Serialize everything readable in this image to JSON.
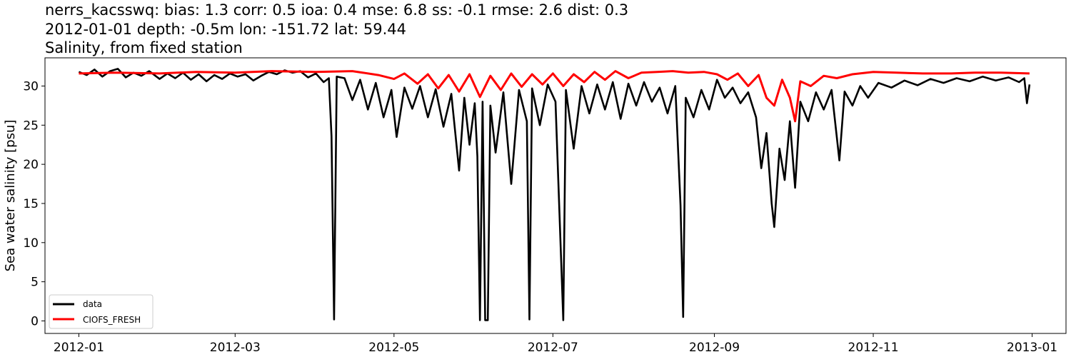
{
  "chart_data": {
    "type": "line",
    "title_lines": [
      "nerrs_kacsswq: bias: 1.3  corr: 0.5  ioa: 0.4  mse: 6.8  ss: -0.1  rmse: 2.6  dist: 0.3",
      "2012-01-01 depth: -0.5m lon: -151.72 lat: 59.44",
      "Salinity, from fixed station"
    ],
    "xlabel": "",
    "ylabel": "Sea water salinity [psu]",
    "xlim": [
      "2011-12-19",
      "2013-01-14"
    ],
    "ylim": [
      -1.6,
      33.6
    ],
    "x_ticks": [
      {
        "date": "2012-01-01",
        "label": "2012-01"
      },
      {
        "date": "2012-03-01",
        "label": "2012-03"
      },
      {
        "date": "2012-05-01",
        "label": "2012-05"
      },
      {
        "date": "2012-07-01",
        "label": "2012-07"
      },
      {
        "date": "2012-09-01",
        "label": "2012-09"
      },
      {
        "date": "2012-11-01",
        "label": "2012-11"
      },
      {
        "date": "2013-01-01",
        "label": "2013-01"
      }
    ],
    "y_ticks": [
      0,
      5,
      10,
      15,
      20,
      25,
      30
    ],
    "legend_position": "lower-left",
    "series": [
      {
        "name": "data",
        "color": "#000000",
        "points": [
          [
            "2012-01-01",
            31.8
          ],
          [
            "2012-01-04",
            31.4
          ],
          [
            "2012-01-07",
            32.1
          ],
          [
            "2012-01-10",
            31.2
          ],
          [
            "2012-01-13",
            31.9
          ],
          [
            "2012-01-16",
            32.2
          ],
          [
            "2012-01-19",
            31.1
          ],
          [
            "2012-01-22",
            31.7
          ],
          [
            "2012-01-25",
            31.3
          ],
          [
            "2012-01-28",
            31.9
          ],
          [
            "2012-02-01",
            30.9
          ],
          [
            "2012-02-04",
            31.6
          ],
          [
            "2012-02-07",
            31.0
          ],
          [
            "2012-02-10",
            31.7
          ],
          [
            "2012-02-13",
            30.8
          ],
          [
            "2012-02-16",
            31.5
          ],
          [
            "2012-02-19",
            30.6
          ],
          [
            "2012-02-22",
            31.4
          ],
          [
            "2012-02-25",
            30.9
          ],
          [
            "2012-02-28",
            31.6
          ],
          [
            "2012-03-02",
            31.2
          ],
          [
            "2012-03-05",
            31.5
          ],
          [
            "2012-03-08",
            30.7
          ],
          [
            "2012-03-11",
            31.3
          ],
          [
            "2012-03-14",
            31.8
          ],
          [
            "2012-03-17",
            31.5
          ],
          [
            "2012-03-20",
            32.0
          ],
          [
            "2012-03-23",
            31.7
          ],
          [
            "2012-03-26",
            31.9
          ],
          [
            "2012-03-29",
            31.1
          ],
          [
            "2012-04-01",
            31.6
          ],
          [
            "2012-04-04",
            30.5
          ],
          [
            "2012-04-06",
            31.0
          ],
          [
            "2012-04-07",
            23.6
          ],
          [
            "2012-04-08",
            0.2
          ],
          [
            "2012-04-09",
            31.2
          ],
          [
            "2012-04-12",
            31.0
          ],
          [
            "2012-04-15",
            28.2
          ],
          [
            "2012-04-18",
            30.8
          ],
          [
            "2012-04-21",
            27.0
          ],
          [
            "2012-04-24",
            30.4
          ],
          [
            "2012-04-27",
            26.0
          ],
          [
            "2012-04-30",
            29.5
          ],
          [
            "2012-05-02",
            23.5
          ],
          [
            "2012-05-05",
            29.8
          ],
          [
            "2012-05-08",
            27.1
          ],
          [
            "2012-05-11",
            30.0
          ],
          [
            "2012-05-14",
            26.0
          ],
          [
            "2012-05-17",
            29.6
          ],
          [
            "2012-05-20",
            24.8
          ],
          [
            "2012-05-23",
            29.0
          ],
          [
            "2012-05-26",
            19.2
          ],
          [
            "2012-05-28",
            28.5
          ],
          [
            "2012-05-30",
            22.5
          ],
          [
            "2012-06-01",
            27.8
          ],
          [
            "2012-06-02",
            21.0
          ],
          [
            "2012-06-03",
            0.1
          ],
          [
            "2012-06-04",
            28.0
          ],
          [
            "2012-06-05",
            0.1
          ],
          [
            "2012-06-06",
            0.1
          ],
          [
            "2012-06-07",
            27.5
          ],
          [
            "2012-06-09",
            21.5
          ],
          [
            "2012-06-12",
            29.2
          ],
          [
            "2012-06-15",
            17.5
          ],
          [
            "2012-06-18",
            29.5
          ],
          [
            "2012-06-21",
            25.5
          ],
          [
            "2012-06-22",
            0.2
          ],
          [
            "2012-06-23",
            29.7
          ],
          [
            "2012-06-26",
            25.0
          ],
          [
            "2012-06-29",
            30.2
          ],
          [
            "2012-07-02",
            28.0
          ],
          [
            "2012-07-05",
            0.1
          ],
          [
            "2012-07-06",
            29.5
          ],
          [
            "2012-07-09",
            22.0
          ],
          [
            "2012-07-12",
            30.0
          ],
          [
            "2012-07-15",
            26.5
          ],
          [
            "2012-07-18",
            30.2
          ],
          [
            "2012-07-21",
            27.0
          ],
          [
            "2012-07-24",
            30.5
          ],
          [
            "2012-07-27",
            25.8
          ],
          [
            "2012-07-30",
            30.3
          ],
          [
            "2012-08-02",
            27.5
          ],
          [
            "2012-08-05",
            30.5
          ],
          [
            "2012-08-08",
            28.0
          ],
          [
            "2012-08-11",
            29.8
          ],
          [
            "2012-08-14",
            26.5
          ],
          [
            "2012-08-17",
            30.0
          ],
          [
            "2012-08-19",
            14.8
          ],
          [
            "2012-08-20",
            0.5
          ],
          [
            "2012-08-21",
            28.5
          ],
          [
            "2012-08-24",
            26.0
          ],
          [
            "2012-08-27",
            29.5
          ],
          [
            "2012-08-30",
            27.0
          ],
          [
            "2012-09-02",
            30.8
          ],
          [
            "2012-09-05",
            28.5
          ],
          [
            "2012-09-08",
            29.8
          ],
          [
            "2012-09-11",
            27.8
          ],
          [
            "2012-09-14",
            29.2
          ],
          [
            "2012-09-17",
            26.0
          ],
          [
            "2012-09-19",
            19.5
          ],
          [
            "2012-09-21",
            24.0
          ],
          [
            "2012-09-23",
            15.0
          ],
          [
            "2012-09-24",
            12.0
          ],
          [
            "2012-09-26",
            22.0
          ],
          [
            "2012-09-28",
            18.0
          ],
          [
            "2012-09-30",
            25.5
          ],
          [
            "2012-10-02",
            17.0
          ],
          [
            "2012-10-04",
            28.0
          ],
          [
            "2012-10-07",
            25.5
          ],
          [
            "2012-10-10",
            29.2
          ],
          [
            "2012-10-13",
            27.0
          ],
          [
            "2012-10-16",
            29.5
          ],
          [
            "2012-10-19",
            20.5
          ],
          [
            "2012-10-21",
            29.3
          ],
          [
            "2012-10-24",
            27.5
          ],
          [
            "2012-10-27",
            30.0
          ],
          [
            "2012-10-30",
            28.5
          ],
          [
            "2012-11-03",
            30.4
          ],
          [
            "2012-11-08",
            29.8
          ],
          [
            "2012-11-13",
            30.7
          ],
          [
            "2012-11-18",
            30.1
          ],
          [
            "2012-11-23",
            30.9
          ],
          [
            "2012-11-28",
            30.4
          ],
          [
            "2012-12-03",
            31.0
          ],
          [
            "2012-12-08",
            30.6
          ],
          [
            "2012-12-13",
            31.2
          ],
          [
            "2012-12-18",
            30.7
          ],
          [
            "2012-12-23",
            31.1
          ],
          [
            "2012-12-27",
            30.5
          ],
          [
            "2012-12-29",
            31.0
          ],
          [
            "2012-12-30",
            27.8
          ],
          [
            "2012-12-31",
            30.2
          ]
        ]
      },
      {
        "name": "CIOFS_FRESH",
        "color": "#ff0000",
        "points": [
          [
            "2012-01-01",
            31.6
          ],
          [
            "2012-01-15",
            31.7
          ],
          [
            "2012-02-01",
            31.6
          ],
          [
            "2012-02-15",
            31.8
          ],
          [
            "2012-03-01",
            31.7
          ],
          [
            "2012-03-15",
            31.9
          ],
          [
            "2012-04-01",
            31.8
          ],
          [
            "2012-04-15",
            31.9
          ],
          [
            "2012-04-25",
            31.4
          ],
          [
            "2012-05-01",
            30.9
          ],
          [
            "2012-05-05",
            31.6
          ],
          [
            "2012-05-10",
            30.3
          ],
          [
            "2012-05-14",
            31.5
          ],
          [
            "2012-05-18",
            29.7
          ],
          [
            "2012-05-22",
            31.4
          ],
          [
            "2012-05-26",
            29.3
          ],
          [
            "2012-05-30",
            31.5
          ],
          [
            "2012-06-03",
            28.6
          ],
          [
            "2012-06-07",
            31.3
          ],
          [
            "2012-06-11",
            29.5
          ],
          [
            "2012-06-15",
            31.6
          ],
          [
            "2012-06-19",
            29.9
          ],
          [
            "2012-06-23",
            31.5
          ],
          [
            "2012-06-27",
            30.2
          ],
          [
            "2012-07-01",
            31.6
          ],
          [
            "2012-07-05",
            30.0
          ],
          [
            "2012-07-09",
            31.5
          ],
          [
            "2012-07-13",
            30.5
          ],
          [
            "2012-07-17",
            31.8
          ],
          [
            "2012-07-21",
            30.8
          ],
          [
            "2012-07-25",
            31.9
          ],
          [
            "2012-07-30",
            31.0
          ],
          [
            "2012-08-04",
            31.7
          ],
          [
            "2012-08-10",
            31.8
          ],
          [
            "2012-08-16",
            31.9
          ],
          [
            "2012-08-22",
            31.7
          ],
          [
            "2012-08-28",
            31.8
          ],
          [
            "2012-09-02",
            31.5
          ],
          [
            "2012-09-06",
            30.8
          ],
          [
            "2012-09-10",
            31.6
          ],
          [
            "2012-09-14",
            30.0
          ],
          [
            "2012-09-18",
            31.4
          ],
          [
            "2012-09-21",
            28.5
          ],
          [
            "2012-09-24",
            27.5
          ],
          [
            "2012-09-27",
            30.8
          ],
          [
            "2012-09-30",
            28.5
          ],
          [
            "2012-10-02",
            25.5
          ],
          [
            "2012-10-04",
            30.6
          ],
          [
            "2012-10-08",
            30.0
          ],
          [
            "2012-10-13",
            31.3
          ],
          [
            "2012-10-18",
            31.0
          ],
          [
            "2012-10-24",
            31.5
          ],
          [
            "2012-11-01",
            31.8
          ],
          [
            "2012-11-10",
            31.7
          ],
          [
            "2012-11-20",
            31.6
          ],
          [
            "2012-12-01",
            31.6
          ],
          [
            "2012-12-10",
            31.7
          ],
          [
            "2012-12-20",
            31.7
          ],
          [
            "2012-12-31",
            31.6
          ]
        ]
      }
    ]
  }
}
